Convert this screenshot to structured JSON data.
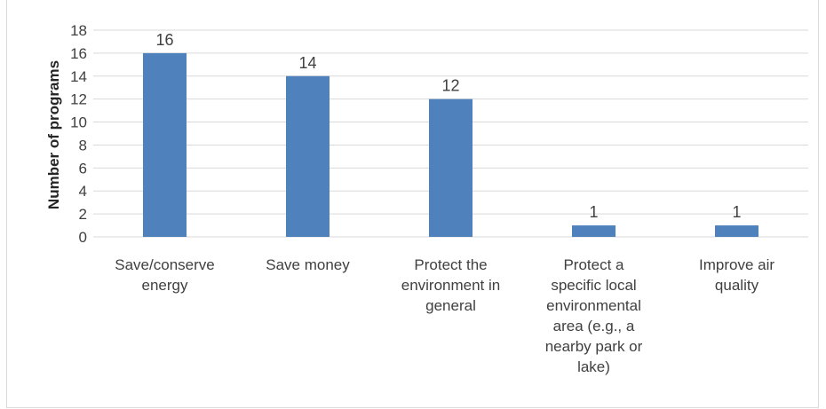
{
  "chart_data": {
    "type": "bar",
    "categories": [
      [
        "Save/conserve",
        "energy"
      ],
      [
        "Save money"
      ],
      [
        "Protect the",
        "environment in",
        "general"
      ],
      [
        "Protect a",
        "specific local",
        "environmental",
        "area (e.g., a",
        "nearby park or",
        "lake)"
      ],
      [
        "Improve air",
        "quality"
      ]
    ],
    "values": [
      16,
      14,
      12,
      1,
      1
    ],
    "data_labels": [
      "16",
      "14",
      "12",
      "1",
      "1"
    ],
    "ylabel": "Number of programs",
    "ylim": [
      0,
      18
    ],
    "yticks": [
      0,
      2,
      4,
      6,
      8,
      10,
      12,
      14,
      16,
      18
    ],
    "grid": true,
    "bar_color": "#4f81bd",
    "grid_color": "#d9d9d9"
  }
}
